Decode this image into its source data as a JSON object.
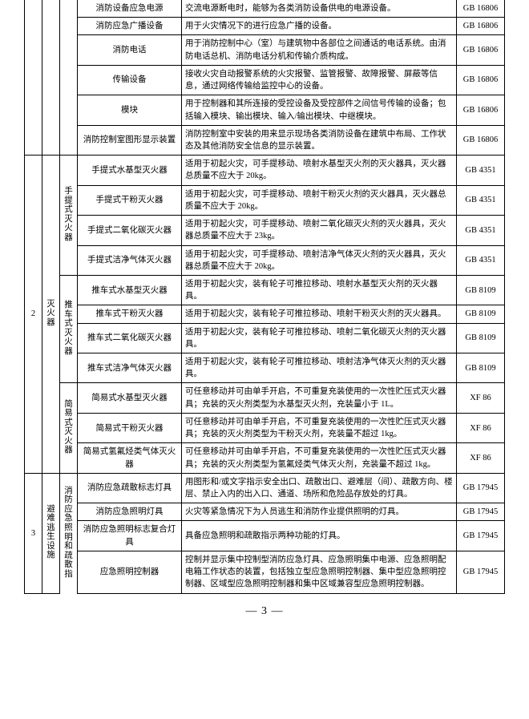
{
  "font_family": "SimSun",
  "page_bg": "#ffffff",
  "border_color": "#000000",
  "text_color": "#000000",
  "footer": "— 3 —",
  "section1": {
    "rows": [
      {
        "name": "消防设备应急电源",
        "desc": "交流电源断电时，能够为各类消防设备供电的电源设备。",
        "std": "GB 16806"
      },
      {
        "name": "消防应急广播设备",
        "desc": "用于火灾情况下的进行应急广播的设备。",
        "std": "GB 16806"
      },
      {
        "name": "消防电话",
        "desc": "用于消防控制中心（室）与建筑物中各部位之间通话的电话系统。由消防电话总机、消防电话分机和传输介质构成。",
        "std": "GB 16806"
      },
      {
        "name": "传输设备",
        "desc": "接收火灾自动报警系统的火灾报警、监管报警、故障报警、屏蔽等信息，通过网络传输给监控中心的设备。",
        "std": "GB 16806"
      },
      {
        "name": "模块",
        "desc": "用于控制器和其所连接的受控设备及受控部件之间信号传输的设备；包括输入模块、输出模块、输入/输出模块、中继模块。",
        "std": "GB 16806"
      },
      {
        "name": "消防控制室图形显示装置",
        "desc": "消防控制室中安装的用来显示现场各类消防设备在建筑中布局、工作状态及其他消防安全信息的显示装置。",
        "std": "GB 16806"
      }
    ]
  },
  "section2": {
    "idx": "2",
    "cat": "灭火器",
    "groups": [
      {
        "sub": "手提式灭火器",
        "rows": [
          {
            "name": "手提式水基型灭火器",
            "desc": "适用于初起火灾，可手提移动、喷射水基型灭火剂的灭火器具，灭火器总质量不应大于 20kg。",
            "std": "GB 4351"
          },
          {
            "name": "手提式干粉灭火器",
            "desc": "适用于初起火灾，可手提移动、喷射干粉灭火剂的灭火器具，灭火器总质量不应大于 20kg。",
            "std": "GB 4351"
          },
          {
            "name": "手提式二氧化碳灭火器",
            "desc": "适用于初起火灾，可手提移动、喷射二氧化碳灭火剂的灭火器具，灭火器总质量不应大于 23kg。",
            "std": "GB 4351"
          },
          {
            "name": "手提式洁净气体灭火器",
            "desc": "适用于初起火灾，可手提移动、喷射洁净气体灭火剂的灭火器具，灭火器总质量不应大于 20kg。",
            "std": "GB 4351"
          }
        ]
      },
      {
        "sub": "推车式灭火器",
        "rows": [
          {
            "name": "推车式水基型灭火器",
            "desc": "适用于初起火灾，装有轮子可推拉移动、喷射水基型灭火剂的灭火器具。",
            "std": "GB 8109"
          },
          {
            "name": "推车式干粉灭火器",
            "desc": "适用于初起火灾，装有轮子可推拉移动、喷射干粉灭火剂的灭火器具。",
            "std": "GB 8109"
          },
          {
            "name": "推车式二氧化碳灭火器",
            "desc": "适用于初起火灾，装有轮子可推拉移动、喷射二氧化碳灭火剂的灭火器具。",
            "std": "GB 8109"
          },
          {
            "name": "推车式洁净气体灭火器",
            "desc": "适用于初起火灾，装有轮子可推拉移动、喷射洁净气体灭火剂的灭火器具。",
            "std": "GB 8109"
          }
        ]
      },
      {
        "sub": "简易式灭火器",
        "rows": [
          {
            "name": "简易式水基型灭火器",
            "desc": "可任意移动并可由单手开启，不可重复充装使用的一次性贮压式灭火器具；充装的灭火剂类型为水基型灭火剂，充装量小于 1L。",
            "std": "XF 86"
          },
          {
            "name": "简易式干粉灭火器",
            "desc": "可任意移动并可由单手开启，不可重复充装使用的一次性贮压式灭火器具；充装的灭火剂类型为干粉灭火剂，充装量不超过 1kg。",
            "std": "XF 86"
          },
          {
            "name": "简易式氢氟烃类气体灭火器",
            "desc": "可任意移动并可由单手开启，不可重复充装使用的一次性贮压式灭火器具；充装的灭火剂类型为氢氟烃类气体灭火剂，充装量不超过 1kg。",
            "std": "XF 86"
          }
        ]
      }
    ]
  },
  "section3": {
    "idx": "3",
    "cat": "避难逃生设施",
    "sub": "消防应急照明和疏散指",
    "rows": [
      {
        "name": "消防应急疏散标志灯具",
        "desc": "用图形和/或文字指示安全出口、疏散出口、避难层（间）、疏散方向、楼层、禁止入内的出入口、通道、场所和危险品存放处的灯具。",
        "std": "GB 17945"
      },
      {
        "name": "消防应急照明灯具",
        "desc": "火灾等紧急情况下为人员逃生和消防作业提供照明的灯具。",
        "std": "GB 17945"
      },
      {
        "name": "消防应急照明标志复合灯具",
        "desc": "具备应急照明和疏散指示两种功能的灯具。",
        "std": "GB 17945"
      },
      {
        "name": "应急照明控制器",
        "desc": "控制并显示集中控制型消防应急灯具、应急照明集中电源、应急照明配电箱工作状态的装置，包括独立型应急照明控制器、集中型应急照明控制器、区域型应急照明控制器和集中区域兼容型应急照明控制器。",
        "std": "GB 17945"
      }
    ]
  }
}
